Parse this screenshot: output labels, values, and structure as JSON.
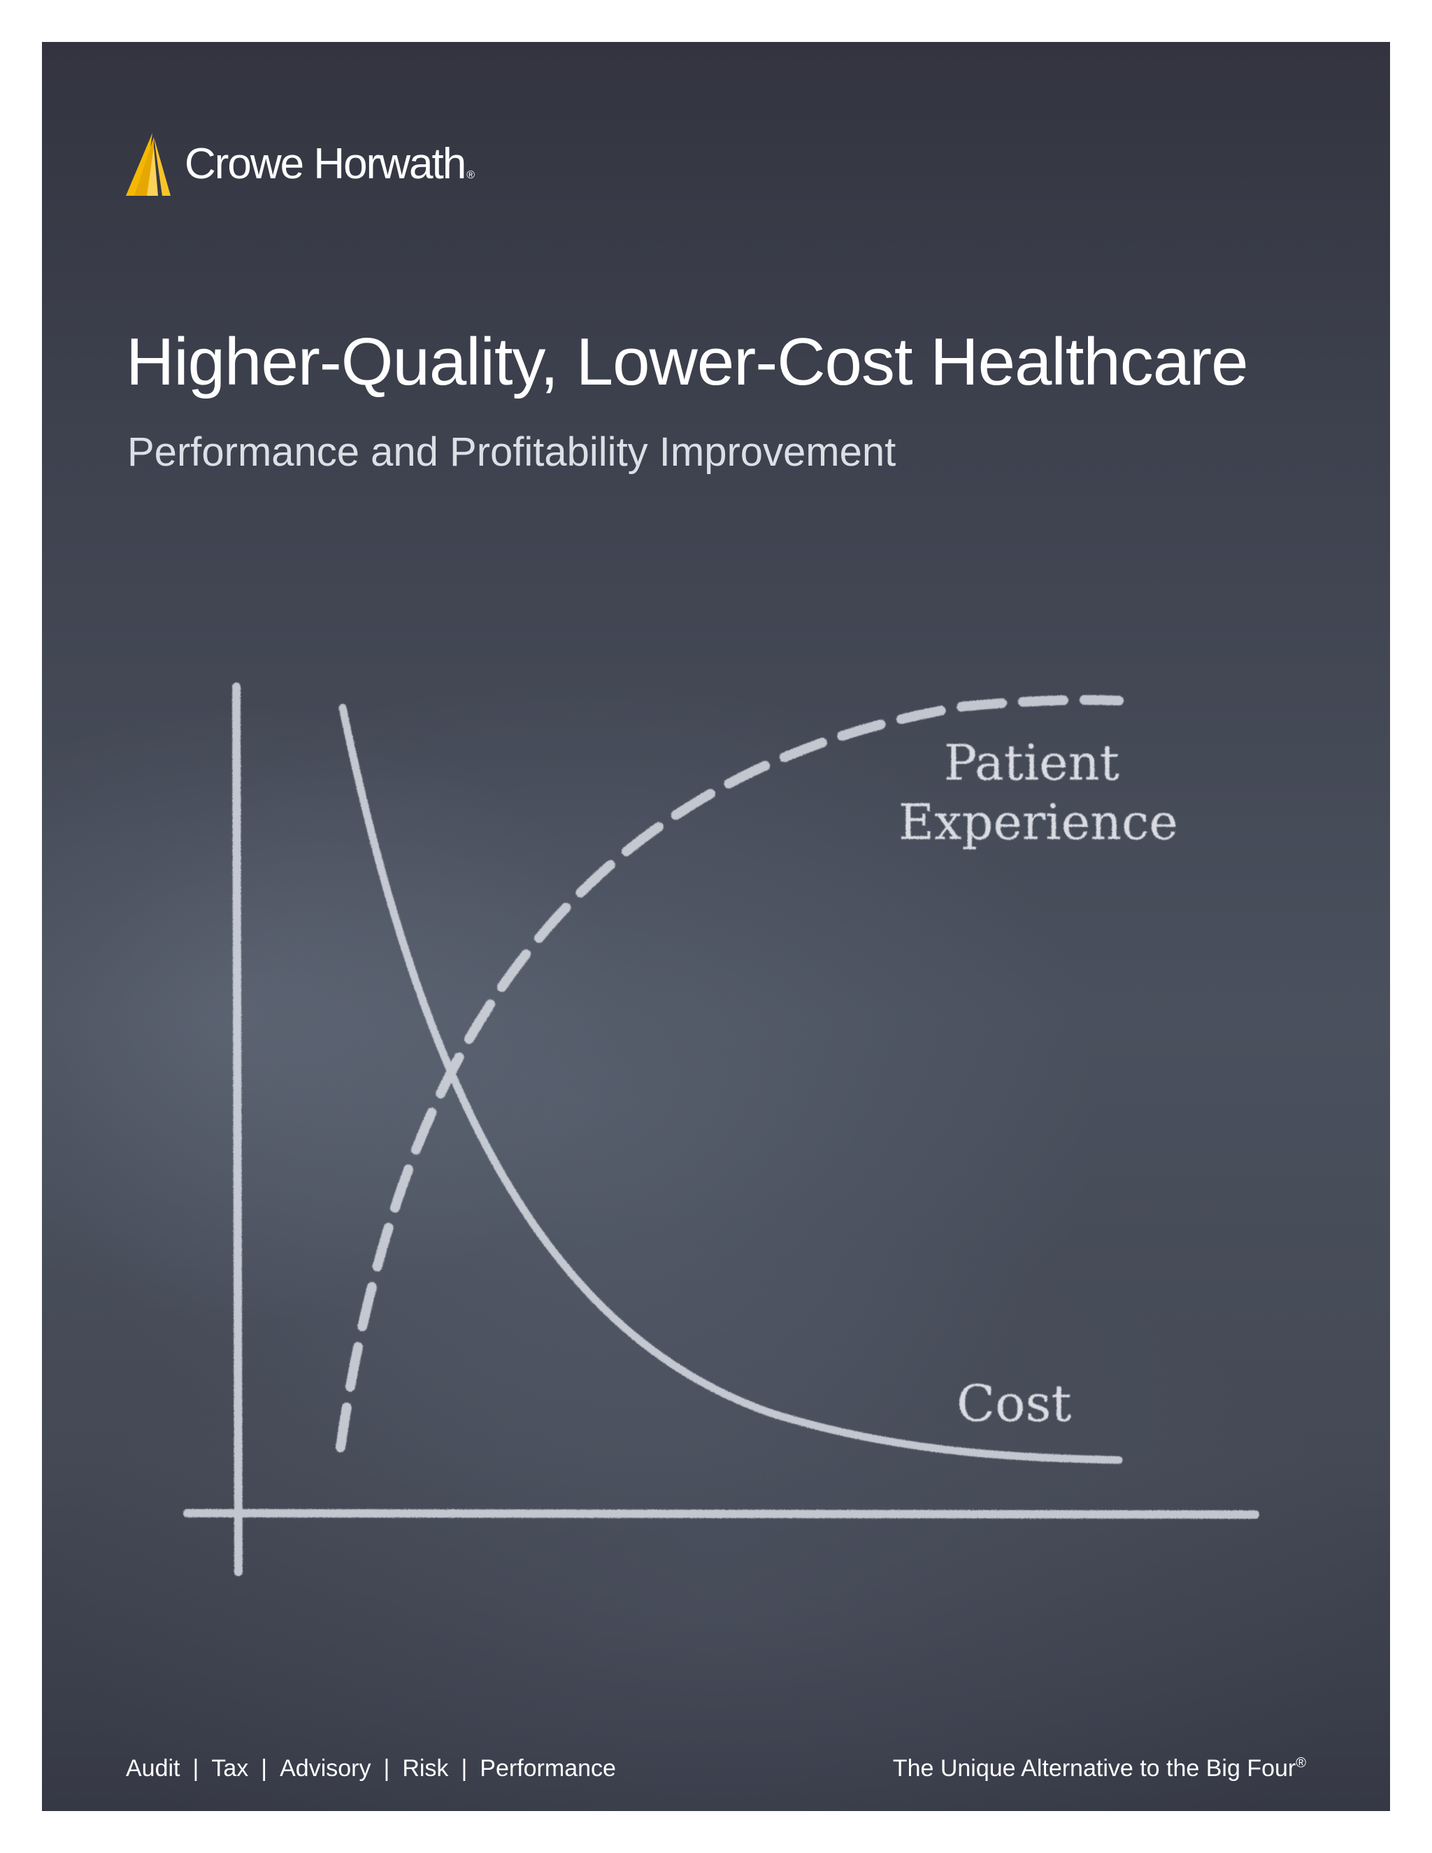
{
  "brand": {
    "name": "Crowe Horwath",
    "registered_mark": "®",
    "accent_color": "#f5b800"
  },
  "cover": {
    "title": "Higher-Quality, Lower-Cost Healthcare",
    "subtitle": "Performance and Profitability Improvement"
  },
  "illustration": {
    "label_patient_line1": "Patient",
    "label_patient_line2": "Experience",
    "label_cost": "Cost",
    "chalk_color": "#e7e9ee",
    "board_color": "#404451"
  },
  "footer": {
    "services": [
      "Audit",
      "Tax",
      "Advisory",
      "Risk",
      "Performance"
    ],
    "separator": "|",
    "tagline": "The Unique Alternative to the Big Four",
    "tagline_mark": "®"
  }
}
